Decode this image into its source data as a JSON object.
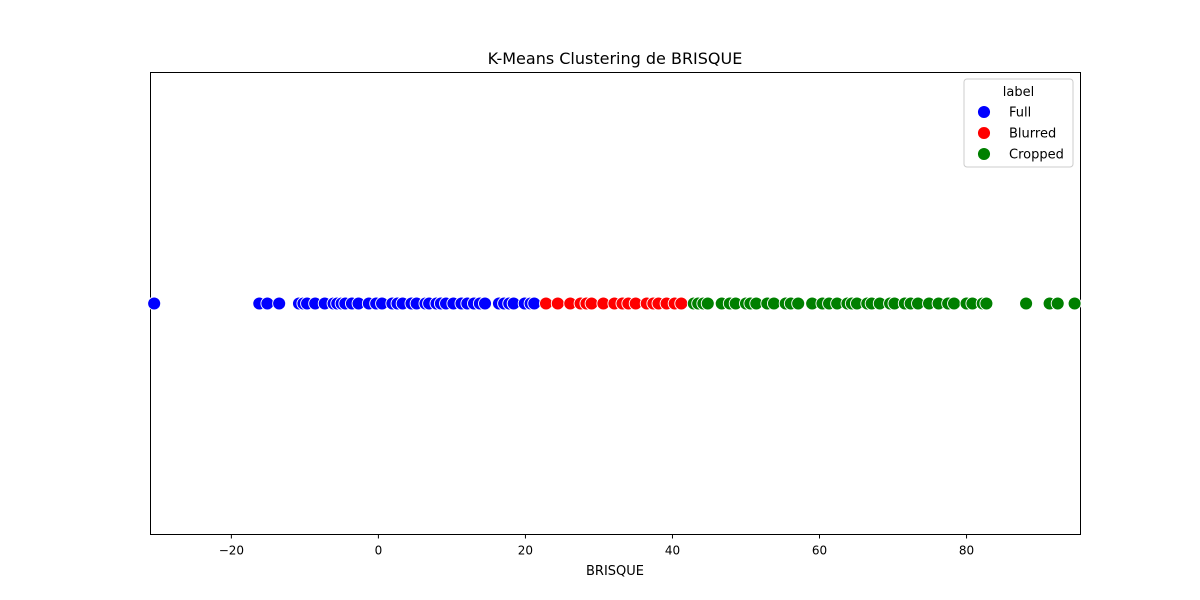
{
  "chart_data": {
    "type": "scatter",
    "title": "K-Means Clustering de BRISQUE",
    "xlabel": "BRISQUE",
    "ylabel": "",
    "xlim": [
      -31,
      95.5
    ],
    "xticks": [
      -20,
      0,
      20,
      40,
      60,
      80
    ],
    "xtick_labels": [
      "−20",
      "0",
      "20",
      "40",
      "60",
      "80"
    ],
    "yticks": [],
    "grid": false,
    "legend": {
      "title": "label",
      "placement": "top-right"
    },
    "series": [
      {
        "name": "Full",
        "color": "#0000ff",
        "x": [
          -30.5,
          -16.2,
          -15.1,
          -13.5,
          -10.8,
          -10.2,
          -9.7,
          -8.6,
          -7.3,
          -6.1,
          -5.6,
          -5.0,
          -4.5,
          -3.6,
          -2.7,
          -1.3,
          -0.3,
          0.5,
          1.9,
          2.6,
          3.3,
          4.5,
          5.2,
          6.4,
          6.9,
          7.9,
          8.5,
          9.2,
          10.2,
          11.3,
          12.1,
          13.0,
          13.8,
          14.5,
          16.4,
          17.1,
          17.8,
          18.4,
          19.9,
          20.7,
          21.2
        ],
        "y": [
          0,
          0,
          0,
          0,
          0,
          0,
          0,
          0,
          0,
          0,
          0,
          0,
          0,
          0,
          0,
          0,
          0,
          0,
          0,
          0,
          0,
          0,
          0,
          0,
          0,
          0,
          0,
          0,
          0,
          0,
          0,
          0,
          0,
          0,
          0,
          0,
          0,
          0,
          0,
          0,
          0
        ]
      },
      {
        "name": "Blurred",
        "color": "#ff0000",
        "x": [
          22.8,
          24.4,
          26.1,
          27.5,
          28.3,
          29.0,
          30.6,
          32.1,
          33.2,
          34.0,
          35.0,
          36.5,
          37.4,
          38.1,
          39.2,
          40.3,
          41.2
        ],
        "y": [
          0,
          0,
          0,
          0,
          0,
          0,
          0,
          0,
          0,
          0,
          0,
          0,
          0,
          0,
          0,
          0,
          0
        ]
      },
      {
        "name": "Cropped",
        "color": "#008000",
        "x": [
          42.9,
          43.5,
          44.2,
          44.8,
          46.7,
          47.8,
          48.6,
          50.0,
          50.6,
          51.4,
          52.9,
          53.8,
          55.4,
          56.1,
          57.1,
          59.0,
          60.4,
          61.3,
          62.4,
          63.8,
          64.4,
          65.1,
          66.5,
          67.1,
          68.2,
          69.6,
          70.2,
          71.6,
          72.4,
          73.4,
          74.9,
          76.2,
          77.5,
          78.3,
          80.0,
          80.8,
          82.2,
          82.7,
          88.1,
          91.3,
          92.4,
          94.7
        ],
        "y": [
          0,
          0,
          0,
          0,
          0,
          0,
          0,
          0,
          0,
          0,
          0,
          0,
          0,
          0,
          0,
          0,
          0,
          0,
          0,
          0,
          0,
          0,
          0,
          0,
          0,
          0,
          0,
          0,
          0,
          0,
          0,
          0,
          0,
          0,
          0,
          0,
          0,
          0,
          0,
          0,
          0,
          0
        ]
      }
    ]
  }
}
